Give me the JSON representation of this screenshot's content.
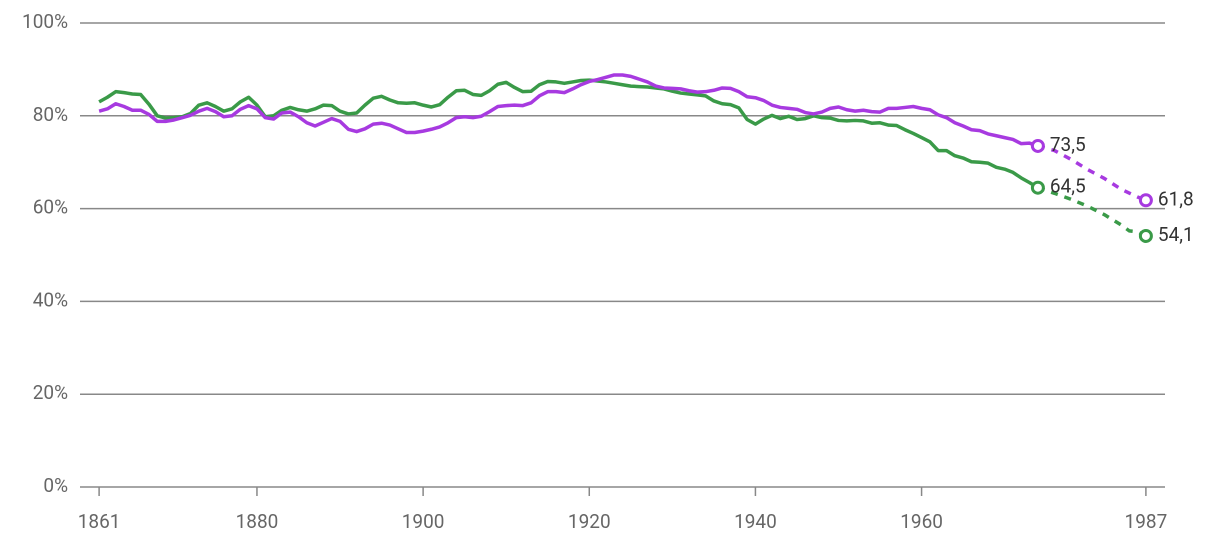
{
  "chart_data": {
    "type": "line",
    "xlim": [
      1858.7,
      1989.3
    ],
    "ylim": [
      0,
      100
    ],
    "xticks": [
      1861,
      1880,
      1900,
      1920,
      1940,
      1960,
      1987
    ],
    "yticks": [
      {
        "value": 0,
        "label": "0%"
      },
      {
        "value": 20,
        "label": "20%"
      },
      {
        "value": 40,
        "label": "40%"
      },
      {
        "value": 60,
        "label": "60%"
      },
      {
        "value": 80,
        "label": "80%"
      },
      {
        "value": 100,
        "label": "100%"
      }
    ],
    "grid": true,
    "series": [
      {
        "color": "#3a9a48",
        "dash": false,
        "end_label": "64,5",
        "x": [
          1861,
          1862,
          1863,
          1864,
          1865,
          1866,
          1867,
          1868,
          1869,
          1870,
          1871,
          1872,
          1873,
          1874,
          1875,
          1876,
          1877,
          1878,
          1879,
          1880,
          1881,
          1882,
          1883,
          1884,
          1885,
          1886,
          1887,
          1888,
          1889,
          1890,
          1891,
          1892,
          1893,
          1894,
          1895,
          1896,
          1897,
          1898,
          1899,
          1900,
          1901,
          1902,
          1903,
          1904,
          1905,
          1906,
          1907,
          1908,
          1909,
          1910,
          1911,
          1912,
          1913,
          1914,
          1915,
          1916,
          1917,
          1918,
          1919,
          1920,
          1921,
          1922,
          1923,
          1924,
          1925,
          1926,
          1927,
          1928,
          1929,
          1930,
          1931,
          1932,
          1933,
          1934,
          1935,
          1936,
          1937,
          1938,
          1939,
          1940,
          1941,
          1942,
          1943,
          1944,
          1945,
          1946,
          1947,
          1948,
          1949,
          1950,
          1951,
          1952,
          1953,
          1954,
          1955,
          1956,
          1957,
          1958,
          1959,
          1960,
          1961,
          1962,
          1963,
          1964,
          1965,
          1966,
          1967,
          1968,
          1969,
          1970,
          1971,
          1972,
          1973,
          1974
        ],
        "values": [
          83,
          84,
          85.2,
          85,
          84.7,
          84.6,
          82.5,
          80,
          79.5,
          79.6,
          79.8,
          80.5,
          82.3,
          82.8,
          82,
          81,
          81.5,
          83,
          84,
          82.3,
          79.8,
          80,
          81.2,
          81.8,
          81.3,
          81,
          81.5,
          82.3,
          82.2,
          81,
          80.4,
          80.6,
          82.3,
          83.8,
          84.2,
          83.4,
          82.8,
          82.7,
          82.8,
          82.3,
          81.9,
          82.4,
          84,
          85.4,
          85.5,
          84.6,
          84.4,
          85.4,
          86.8,
          87.2,
          86.1,
          85.2,
          85.3,
          86.7,
          87.4,
          87.3,
          87,
          87.3,
          87.6,
          87.7,
          87.5,
          87.3,
          87,
          86.7,
          86.4,
          86.3,
          86.2,
          86,
          85.8,
          85.3,
          84.9,
          84.7,
          84.5,
          84.3,
          83.2,
          82.6,
          82.4,
          81.7,
          79.2,
          78.2,
          79.3,
          80.1,
          79.4,
          79.9,
          79.2,
          79.4,
          80,
          79.6,
          79.5,
          79,
          78.9,
          79,
          78.9,
          78.4,
          78.5,
          78,
          77.9,
          77,
          76.2,
          75.3,
          74.4,
          72.5,
          72.5,
          71.4,
          70.9,
          70.1,
          70,
          69.8,
          68.9,
          68.5,
          67.8,
          66.6,
          65.6,
          64.5
        ]
      },
      {
        "color": "#a73ae0",
        "dash": false,
        "end_label": "73,5",
        "x": [
          1861,
          1862,
          1863,
          1864,
          1865,
          1866,
          1867,
          1868,
          1869,
          1870,
          1871,
          1872,
          1873,
          1874,
          1875,
          1876,
          1877,
          1878,
          1879,
          1880,
          1881,
          1882,
          1883,
          1884,
          1885,
          1886,
          1887,
          1888,
          1889,
          1890,
          1891,
          1892,
          1893,
          1894,
          1895,
          1896,
          1897,
          1898,
          1899,
          1900,
          1901,
          1902,
          1903,
          1904,
          1905,
          1906,
          1907,
          1908,
          1909,
          1910,
          1911,
          1912,
          1913,
          1914,
          1915,
          1916,
          1917,
          1918,
          1919,
          1920,
          1921,
          1922,
          1923,
          1924,
          1925,
          1926,
          1927,
          1928,
          1929,
          1930,
          1931,
          1932,
          1933,
          1934,
          1935,
          1936,
          1937,
          1938,
          1939,
          1940,
          1941,
          1942,
          1943,
          1944,
          1945,
          1946,
          1947,
          1948,
          1949,
          1950,
          1951,
          1952,
          1953,
          1954,
          1955,
          1956,
          1957,
          1958,
          1959,
          1960,
          1961,
          1962,
          1963,
          1964,
          1965,
          1966,
          1967,
          1968,
          1969,
          1970,
          1971,
          1972,
          1973,
          1974
        ],
        "values": [
          81,
          81.5,
          82.6,
          82,
          81.2,
          81.2,
          80.3,
          78.8,
          78.8,
          79.1,
          79.6,
          80.1,
          81,
          81.6,
          80.9,
          79.8,
          80,
          81.4,
          82.2,
          81.5,
          79.6,
          79.3,
          80.6,
          80.8,
          79.8,
          78.5,
          77.8,
          78.6,
          79.4,
          78.8,
          77.1,
          76.6,
          77.2,
          78.2,
          78.4,
          78,
          77.2,
          76.4,
          76.4,
          76.7,
          77.1,
          77.6,
          78.5,
          79.6,
          79.8,
          79.6,
          79.9,
          80.9,
          82,
          82.2,
          82.3,
          82.2,
          82.8,
          84.3,
          85.2,
          85.2,
          85,
          85.8,
          86.7,
          87.4,
          87.8,
          88.3,
          88.8,
          88.8,
          88.5,
          87.9,
          87.3,
          86.4,
          86,
          85.9,
          85.8,
          85.4,
          85.1,
          85.2,
          85.5,
          86,
          85.9,
          85.2,
          84.1,
          83.9,
          83.3,
          82.3,
          81.8,
          81.6,
          81.4,
          80.7,
          80.4,
          80.8,
          81.6,
          81.9,
          81.3,
          81,
          81.2,
          80.9,
          80.8,
          81.6,
          81.6,
          81.8,
          82,
          81.6,
          81.3,
          80.2,
          79.6,
          78.5,
          77.8,
          77,
          76.8,
          76.1,
          75.7,
          75.3,
          74.9,
          74,
          74.1,
          73.5
        ]
      },
      {
        "color": "#3a9a48",
        "dash": true,
        "end_label": "54,1",
        "x": [
          1974,
          1976,
          1978,
          1980,
          1982,
          1984,
          1985,
          1986,
          1987
        ],
        "values": [
          64.5,
          63.3,
          62,
          60.5,
          58.7,
          56.5,
          55.2,
          55,
          54.1
        ]
      },
      {
        "color": "#a73ae0",
        "dash": true,
        "end_label": "61,8",
        "x": [
          1974,
          1976,
          1978,
          1980,
          1982,
          1984,
          1986,
          1987
        ],
        "values": [
          73.5,
          72.5,
          70.6,
          68.4,
          66.5,
          64.2,
          62.5,
          61.8
        ]
      }
    ]
  }
}
